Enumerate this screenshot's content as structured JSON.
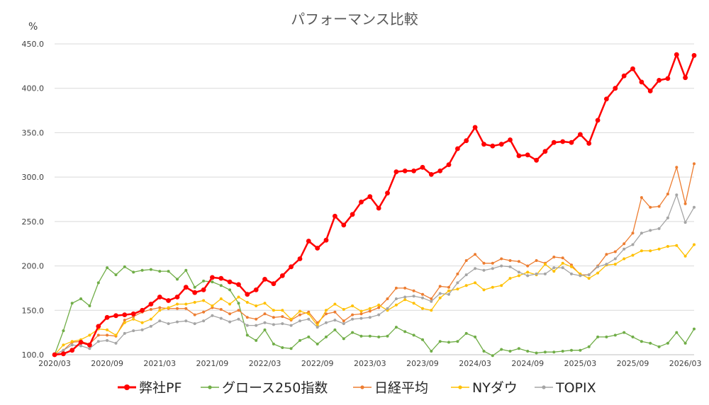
{
  "chart_data": {
    "type": "line",
    "title": "パフォーマンス比較",
    "ylabel": "%",
    "ylim": [
      100,
      450
    ],
    "yticks": [
      "100.0",
      "150.0",
      "200.0",
      "250.0",
      "300.0",
      "350.0",
      "400.0",
      "450.0"
    ],
    "xlabels": [
      "2020/03",
      "2020/09",
      "2021/03",
      "2021/09",
      "2022/03",
      "2022/09",
      "2023/03",
      "2023/09",
      "2024/03",
      "2024/09",
      "2025/03",
      "2025/09",
      "2026/03"
    ],
    "grid": true,
    "legend_position": "bottom",
    "series": [
      {
        "name": "弊社PF",
        "color": "#ff0000",
        "values": [
          100,
          101,
          105,
          114,
          111,
          132,
          142,
          144,
          145,
          146,
          150,
          157,
          165,
          161,
          165,
          176,
          170,
          173,
          187,
          186,
          182,
          179,
          168,
          173,
          185,
          180,
          189,
          199,
          208,
          228,
          220,
          229,
          256,
          246,
          258,
          272,
          278,
          265,
          282,
          306,
          307,
          307,
          311,
          303,
          307,
          314,
          332,
          341,
          356,
          337,
          335,
          337,
          342,
          324,
          325,
          319,
          329,
          339,
          340,
          339,
          348,
          338,
          364,
          388,
          400,
          414,
          422,
          407,
          397,
          409,
          411,
          438,
          412,
          437
        ]
      },
      {
        "name": "グロース250指数",
        "color": "#70ad47",
        "values": [
          100,
          127,
          158,
          163,
          155,
          181,
          198,
          190,
          199,
          193,
          195,
          196,
          194,
          194,
          185,
          195,
          176,
          183,
          182,
          178,
          173,
          158,
          122,
          116,
          128,
          112,
          108,
          107,
          116,
          120,
          112,
          120,
          128,
          118,
          125,
          121,
          121,
          120,
          121,
          131,
          126,
          122,
          117,
          104,
          115,
          114,
          115,
          124,
          120,
          104,
          99,
          106,
          104,
          107,
          104,
          102,
          103,
          103,
          104,
          105,
          105,
          109,
          120,
          120,
          122,
          125,
          120,
          115,
          113,
          109,
          113,
          125,
          113,
          129
        ]
      },
      {
        "name": "日経平均",
        "color": "#ed7d31",
        "values": [
          100,
          105,
          114,
          115,
          112,
          122,
          122,
          121,
          139,
          143,
          148,
          151,
          153,
          152,
          152,
          152,
          145,
          148,
          153,
          151,
          146,
          150,
          142,
          140,
          146,
          142,
          143,
          139,
          145,
          148,
          136,
          146,
          148,
          138,
          145,
          146,
          149,
          153,
          163,
          175,
          175,
          172,
          168,
          163,
          177,
          176,
          191,
          206,
          213,
          203,
          203,
          208,
          206,
          205,
          200,
          206,
          203,
          210,
          209,
          201,
          190,
          190,
          200,
          213,
          216,
          225,
          237,
          277,
          266,
          267,
          281,
          311,
          270,
          315
        ]
      },
      {
        "name": "NYダウ",
        "color": "#ffc000",
        "values": [
          100,
          111,
          115,
          117,
          122,
          129,
          128,
          122,
          136,
          140,
          136,
          140,
          150,
          153,
          157,
          157,
          159,
          161,
          155,
          163,
          157,
          165,
          159,
          155,
          158,
          150,
          150,
          140,
          149,
          146,
          133,
          150,
          157,
          151,
          155,
          149,
          152,
          156,
          150,
          156,
          162,
          158,
          152,
          150,
          164,
          172,
          174,
          178,
          181,
          173,
          176,
          178,
          186,
          189,
          193,
          190,
          202,
          194,
          203,
          199,
          191,
          186,
          192,
          201,
          202,
          208,
          212,
          217,
          217,
          219,
          222,
          223,
          211,
          224
        ]
      },
      {
        "name": "TOPIX",
        "color": "#a5a5a5",
        "values": [
          100,
          105,
          111,
          110,
          107,
          115,
          116,
          113,
          124,
          127,
          128,
          132,
          138,
          135,
          137,
          138,
          135,
          138,
          144,
          141,
          137,
          140,
          133,
          133,
          136,
          134,
          135,
          133,
          138,
          140,
          131,
          136,
          139,
          135,
          140,
          141,
          142,
          145,
          152,
          163,
          165,
          166,
          164,
          160,
          169,
          168,
          181,
          190,
          197,
          195,
          197,
          200,
          199,
          193,
          189,
          191,
          191,
          198,
          198,
          191,
          189,
          190,
          199,
          202,
          208,
          219,
          224,
          237,
          240,
          242,
          254,
          280,
          249,
          266
        ]
      }
    ]
  }
}
